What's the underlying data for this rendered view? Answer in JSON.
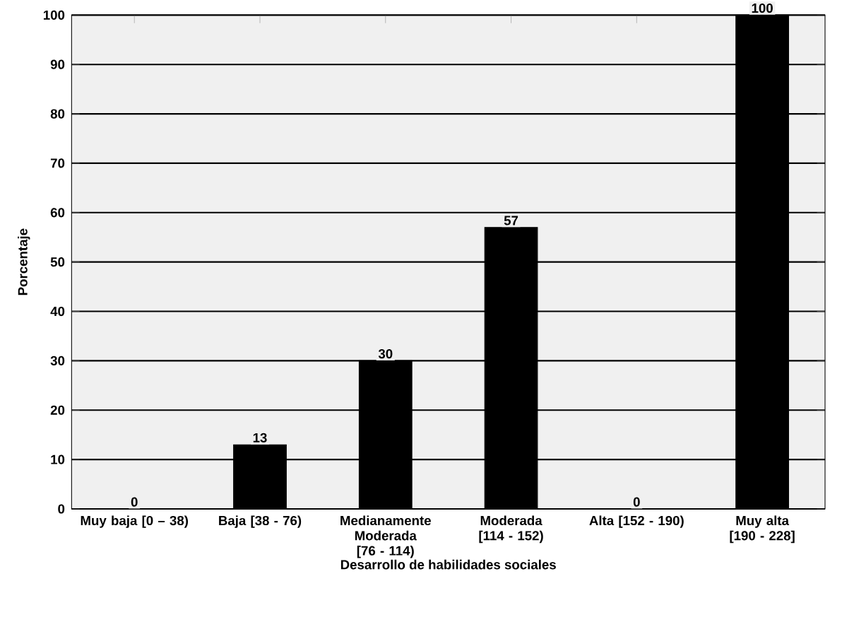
{
  "chart_data": {
    "type": "bar",
    "xlabel": "Desarrollo de habilidades sociales",
    "ylabel": "Porcentaje",
    "categories": [
      "Muy baja [0 – 38)",
      "Baja [38 - 76)",
      "Medianamente Moderada [76 - 114)",
      "Moderada [114 - 152)",
      "Alta [152 - 190)",
      "Muy alta [190 - 228]"
    ],
    "values": [
      0,
      13,
      30,
      57,
      0,
      100
    ],
    "color": "#000000",
    "ylim": [
      0,
      100
    ],
    "yticks": [
      0,
      10,
      20,
      30,
      40,
      50,
      60,
      70,
      80,
      90,
      100
    ],
    "grid": "y",
    "data_labels": true
  }
}
